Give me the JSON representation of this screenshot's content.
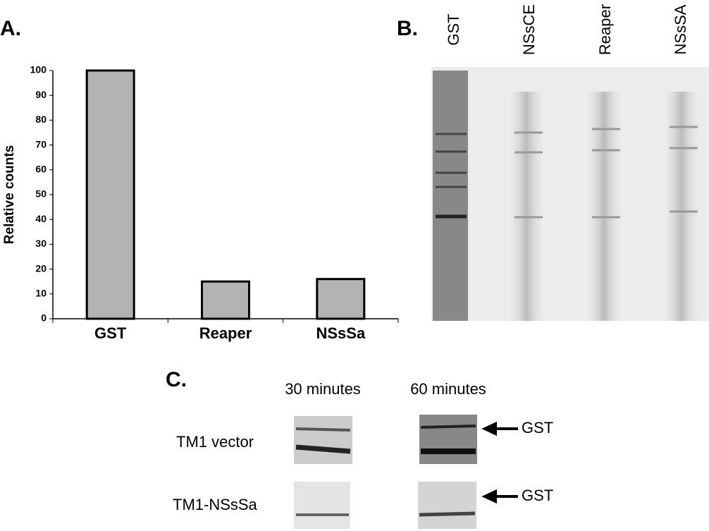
{
  "panel_labels": {
    "a": "A.",
    "b": "B.",
    "c": "C."
  },
  "gel_b": {
    "lanes": [
      "GST",
      "NSsCE",
      "Reaper",
      "NSsSA"
    ]
  },
  "gel_c": {
    "columns": [
      "30 minutes",
      "60 minutes"
    ],
    "rows": [
      "TM1 vector",
      "TM1-NSsSa"
    ],
    "arrow_labels": [
      "GST",
      "GST"
    ]
  },
  "chart_data": {
    "type": "bar",
    "y_label": "Relative counts",
    "categories": [
      "GST",
      "Reaper",
      "NSsSa"
    ],
    "values": [
      100,
      15,
      16
    ],
    "color": "#b3b3b3",
    "ylim": [
      0,
      100
    ],
    "yticks": [
      0,
      10,
      20,
      30,
      40,
      50,
      60,
      70,
      80,
      90,
      100
    ],
    "grid": false
  }
}
